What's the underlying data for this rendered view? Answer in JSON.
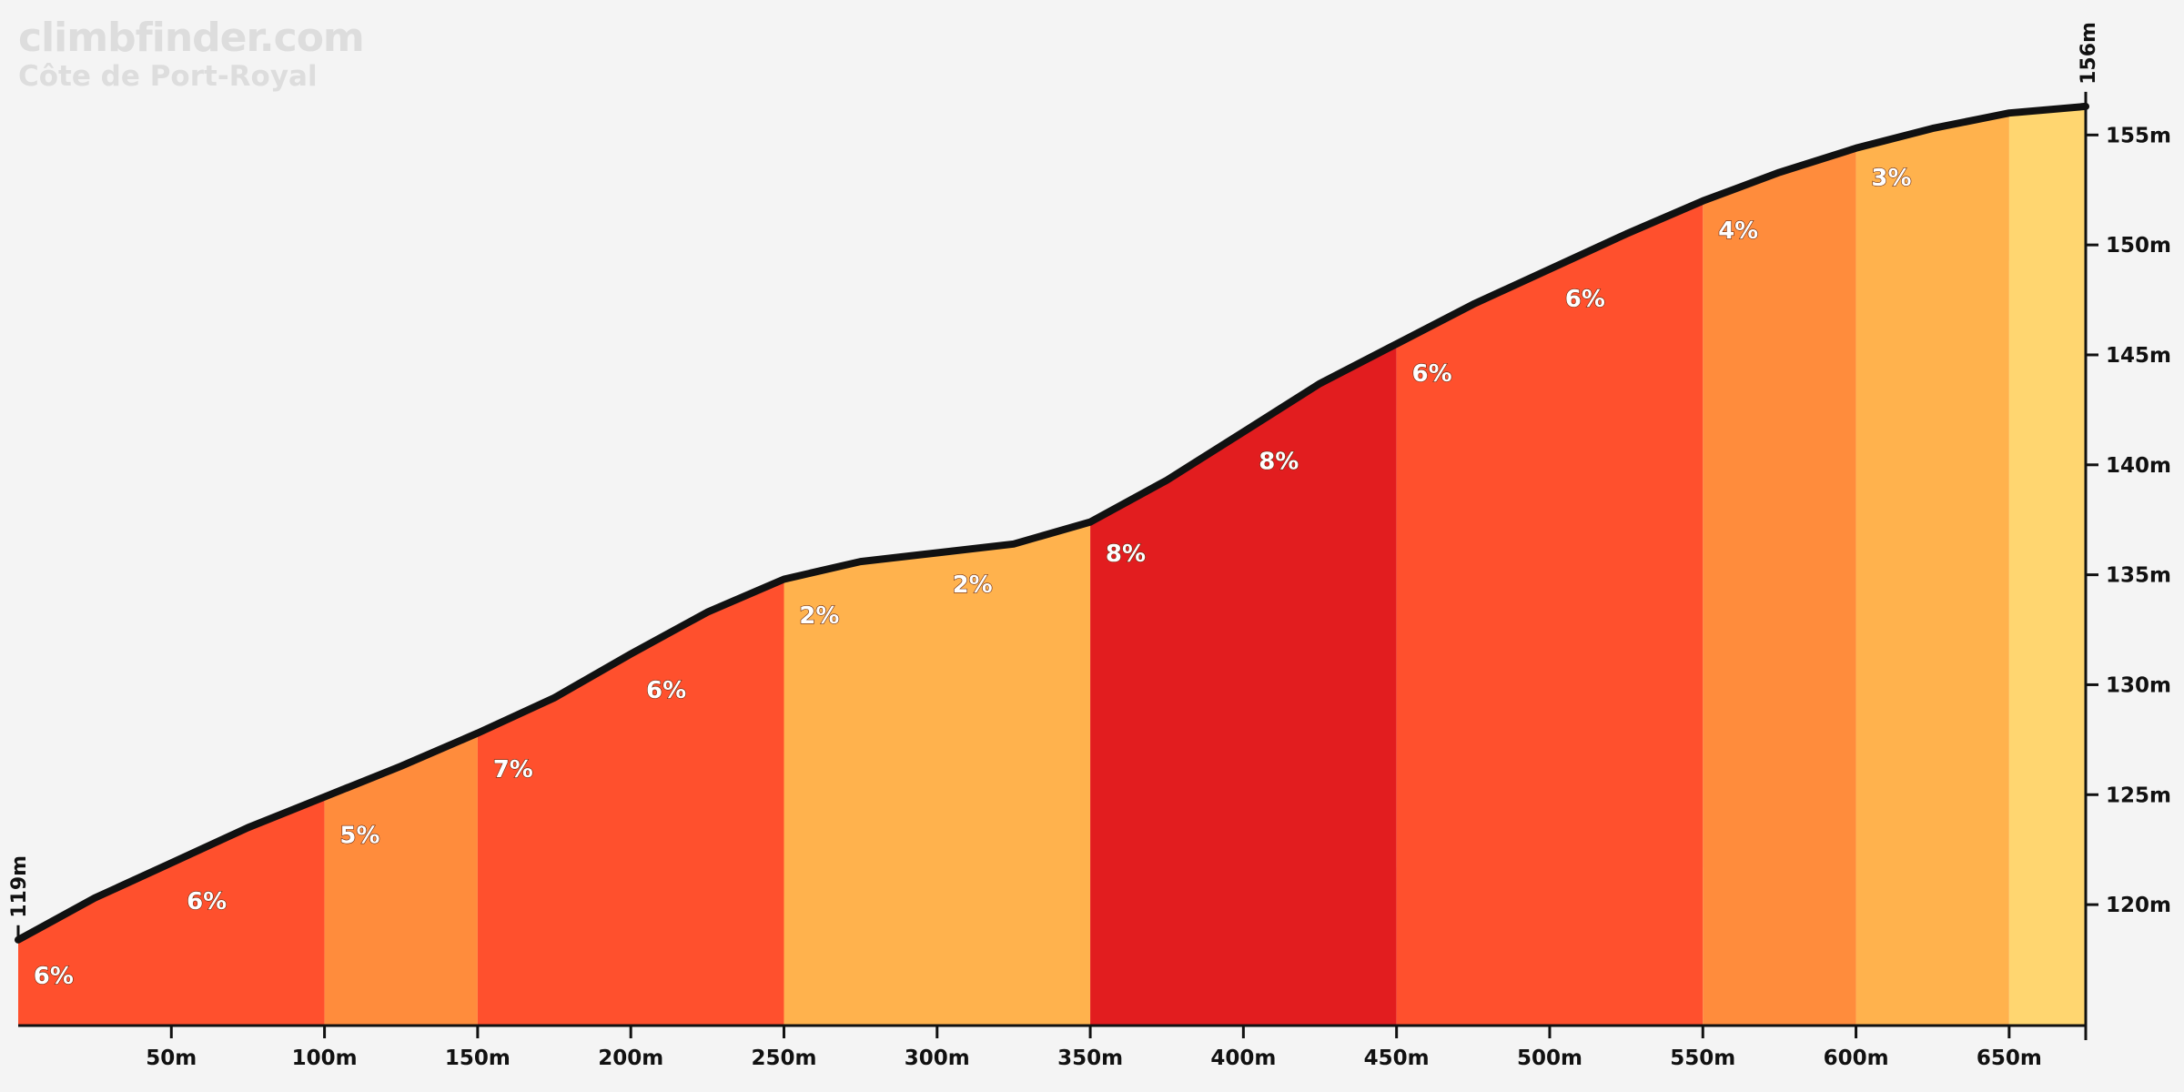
{
  "brand": {
    "site": "climbfinder.com",
    "climb_name": "Côte de Port-Royal"
  },
  "chart_data": {
    "type": "area",
    "title": "Côte de Port-Royal",
    "xlabel": "",
    "ylabel": "",
    "xlim": [
      0,
      675
    ],
    "ylim": [
      114.5,
      157
    ],
    "grid": false,
    "legend": "none",
    "x_ticks": [
      {
        "value": 50,
        "label": "50m"
      },
      {
        "value": 100,
        "label": "100m"
      },
      {
        "value": 150,
        "label": "150m"
      },
      {
        "value": 200,
        "label": "200m"
      },
      {
        "value": 250,
        "label": "250m"
      },
      {
        "value": 300,
        "label": "300m"
      },
      {
        "value": 350,
        "label": "350m"
      },
      {
        "value": 400,
        "label": "400m"
      },
      {
        "value": 450,
        "label": "450m"
      },
      {
        "value": 500,
        "label": "500m"
      },
      {
        "value": 550,
        "label": "550m"
      },
      {
        "value": 600,
        "label": "600m"
      },
      {
        "value": 650,
        "label": "650m"
      }
    ],
    "y_ticks": [
      {
        "value": 120,
        "label": "120m"
      },
      {
        "value": 125,
        "label": "125m"
      },
      {
        "value": 130,
        "label": "130m"
      },
      {
        "value": 135,
        "label": "135m"
      },
      {
        "value": 140,
        "label": "140m"
      },
      {
        "value": 145,
        "label": "145m"
      },
      {
        "value": 150,
        "label": "150m"
      },
      {
        "value": 155,
        "label": "155m"
      }
    ],
    "profile": [
      {
        "x": 0,
        "y": 118.4
      },
      {
        "x": 25,
        "y": 120.3
      },
      {
        "x": 50,
        "y": 121.9
      },
      {
        "x": 75,
        "y": 123.5
      },
      {
        "x": 100,
        "y": 124.9
      },
      {
        "x": 125,
        "y": 126.3
      },
      {
        "x": 150,
        "y": 127.8
      },
      {
        "x": 175,
        "y": 129.4
      },
      {
        "x": 200,
        "y": 131.4
      },
      {
        "x": 225,
        "y": 133.3
      },
      {
        "x": 250,
        "y": 134.8
      },
      {
        "x": 275,
        "y": 135.6
      },
      {
        "x": 300,
        "y": 136.0
      },
      {
        "x": 325,
        "y": 136.4
      },
      {
        "x": 350,
        "y": 137.4
      },
      {
        "x": 375,
        "y": 139.3
      },
      {
        "x": 400,
        "y": 141.5
      },
      {
        "x": 425,
        "y": 143.7
      },
      {
        "x": 450,
        "y": 145.5
      },
      {
        "x": 475,
        "y": 147.3
      },
      {
        "x": 500,
        "y": 148.9
      },
      {
        "x": 525,
        "y": 150.5
      },
      {
        "x": 550,
        "y": 152.0
      },
      {
        "x": 575,
        "y": 153.3
      },
      {
        "x": 600,
        "y": 154.4
      },
      {
        "x": 625,
        "y": 155.3
      },
      {
        "x": 650,
        "y": 156.0
      },
      {
        "x": 675,
        "y": 156.3
      }
    ],
    "segments": [
      {
        "from": 0,
        "to": 100,
        "color": "#ff502d"
      },
      {
        "from": 100,
        "to": 150,
        "color": "#ff8c3c"
      },
      {
        "from": 150,
        "to": 250,
        "color": "#ff502d"
      },
      {
        "from": 250,
        "to": 350,
        "color": "#ffb24d"
      },
      {
        "from": 350,
        "to": 450,
        "color": "#e21d1f"
      },
      {
        "from": 450,
        "to": 550,
        "color": "#ff502d"
      },
      {
        "from": 550,
        "to": 600,
        "color": "#ff8c3c"
      },
      {
        "from": 600,
        "to": 650,
        "color": "#ffb24d"
      },
      {
        "from": 650,
        "to": 675,
        "color": "#ffd670"
      }
    ],
    "grade_labels": [
      {
        "x": 5,
        "y": 116.4,
        "label": "6%"
      },
      {
        "x": 55,
        "y": 119.8,
        "label": "6%"
      },
      {
        "x": 105,
        "y": 122.8,
        "label": "5%"
      },
      {
        "x": 155,
        "y": 125.8,
        "label": "7%"
      },
      {
        "x": 205,
        "y": 129.4,
        "label": "6%"
      },
      {
        "x": 255,
        "y": 132.8,
        "label": "2%"
      },
      {
        "x": 305,
        "y": 134.2,
        "label": "2%"
      },
      {
        "x": 355,
        "y": 135.6,
        "label": "8%"
      },
      {
        "x": 405,
        "y": 139.8,
        "label": "8%"
      },
      {
        "x": 455,
        "y": 143.8,
        "label": "6%"
      },
      {
        "x": 505,
        "y": 147.2,
        "label": "6%"
      },
      {
        "x": 555,
        "y": 150.3,
        "label": "4%"
      },
      {
        "x": 605,
        "y": 152.7,
        "label": "3%"
      }
    ],
    "start_label": "119m",
    "end_label": "156m",
    "line_color": "#111111",
    "background": "#f4f4f4"
  }
}
